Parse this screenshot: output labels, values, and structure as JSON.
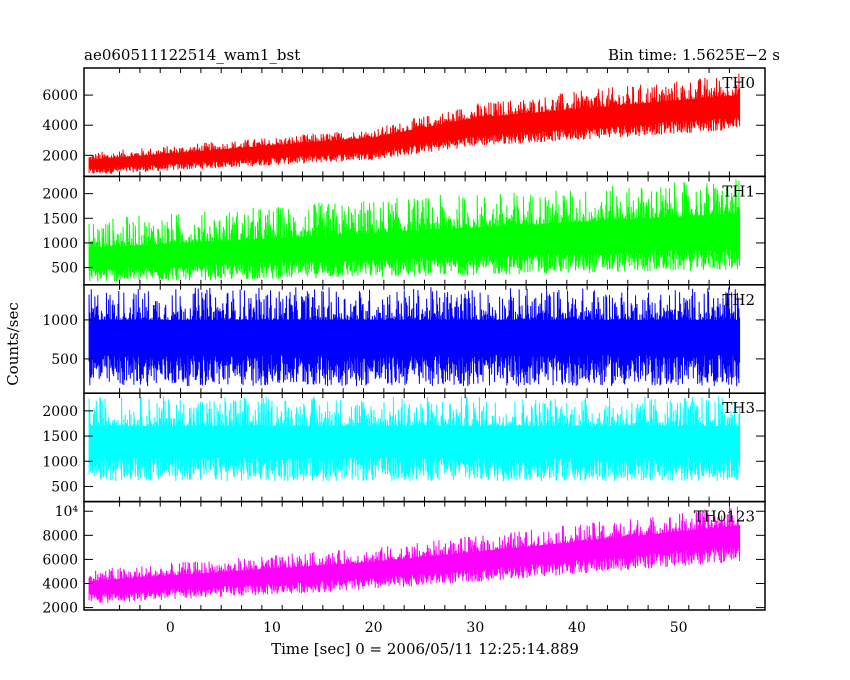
{
  "header": {
    "title": "ae060511122514_wam1_bst",
    "bin_time": "Bin time: 1.5625E−2 s"
  },
  "chart_data": {
    "type": "line",
    "xlabel": "Time [sec] 0 = 2006/05/11 12:25:14.889",
    "ylabel": "Counts/sec",
    "xlim": [
      -8.5,
      58.5
    ],
    "data_range": [
      -8,
      56
    ],
    "x_ticks": [
      0,
      10,
      20,
      30,
      40,
      50
    ],
    "panels": [
      {
        "name": "TH0",
        "color": "#ff0000",
        "ylim": [
          600,
          7800
        ],
        "y_ticks": [
          2000,
          4000,
          6000
        ],
        "y_tick_labels": [
          "2000",
          "4000",
          "6000"
        ],
        "trend": {
          "base": [
            [
              -8,
              1200
            ],
            [
              20,
              2400
            ],
            [
              30,
              3500
            ],
            [
              56,
              4800
            ]
          ],
          "upper": [
            [
              -8,
              1700
            ],
            [
              20,
              3200
            ],
            [
              30,
              4500
            ],
            [
              56,
              6000
            ]
          ],
          "lower": [
            [
              -8,
              700
            ],
            [
              20,
              1700
            ],
            [
              30,
              2600
            ],
            [
              56,
              3700
            ]
          ],
          "peak": [
            [
              -8,
              2200
            ],
            [
              20,
              3800
            ],
            [
              30,
              5500
            ],
            [
              56,
              7500
            ]
          ]
        }
      },
      {
        "name": "TH1",
        "color": "#00ff00",
        "ylim": [
          150,
          2350
        ],
        "y_ticks": [
          500,
          1000,
          1500,
          2000
        ],
        "y_tick_labels": [
          "500",
          "1000",
          "1500",
          "2000"
        ],
        "trend": {
          "base": [
            [
              -8,
              550
            ],
            [
              20,
              780
            ],
            [
              56,
              1000
            ]
          ],
          "upper": [
            [
              -8,
              900
            ],
            [
              20,
              1200
            ],
            [
              56,
              1600
            ]
          ],
          "lower": [
            [
              -8,
              200
            ],
            [
              20,
              300
            ],
            [
              56,
              450
            ]
          ],
          "peak": [
            [
              -8,
              1500
            ],
            [
              20,
              1900
            ],
            [
              56,
              2300
            ]
          ]
        }
      },
      {
        "name": "TH2",
        "color": "#0000ff",
        "ylim": [
          60,
          1450
        ],
        "y_ticks": [
          500,
          1000
        ],
        "y_tick_labels": [
          "500",
          "1000"
        ],
        "trend": {
          "base": [
            [
              -8,
              650
            ],
            [
              56,
              650
            ]
          ],
          "upper": [
            [
              -8,
              1000
            ],
            [
              56,
              1000
            ]
          ],
          "lower": [
            [
              -8,
              150
            ],
            [
              56,
              150
            ]
          ],
          "peak": [
            [
              -8,
              1420
            ],
            [
              56,
              1420
            ]
          ]
        }
      },
      {
        "name": "TH3",
        "color": "#00ffff",
        "ylim": [
          200,
          2350
        ],
        "y_ticks": [
          500,
          1000,
          1500,
          2000
        ],
        "y_tick_labels": [
          "500",
          "1000",
          "1500",
          "2000"
        ],
        "trend": {
          "base": [
            [
              -8,
              1200
            ],
            [
              56,
              1200
            ]
          ],
          "upper": [
            [
              -8,
              1700
            ],
            [
              56,
              1700
            ]
          ],
          "lower": [
            [
              -8,
              600
            ],
            [
              56,
              600
            ]
          ],
          "peak": [
            [
              -8,
              2300
            ],
            [
              56,
              2300
            ]
          ]
        }
      },
      {
        "name": "TH0123",
        "color": "#ff00ff",
        "ylim": [
          1800,
          10800
        ],
        "y_ticks": [
          2000,
          4000,
          6000,
          8000,
          10000
        ],
        "y_tick_labels": [
          "2000",
          "4000",
          "6000",
          "8000",
          "10⁴"
        ],
        "trend": {
          "base": [
            [
              -8,
              3400
            ],
            [
              20,
              4700
            ],
            [
              56,
              7500
            ]
          ],
          "upper": [
            [
              -8,
              4200
            ],
            [
              20,
              5800
            ],
            [
              56,
              8800
            ]
          ],
          "lower": [
            [
              -8,
              2300
            ],
            [
              20,
              3500
            ],
            [
              56,
              5800
            ]
          ],
          "peak": [
            [
              -8,
              5200
            ],
            [
              20,
              7000
            ],
            [
              56,
              10500
            ]
          ]
        }
      }
    ]
  }
}
